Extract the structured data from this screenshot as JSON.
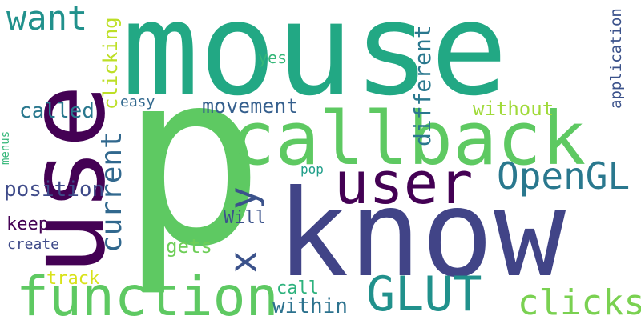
{
  "words": [
    {
      "id": "p",
      "text": "p",
      "color": "#5ec962"
    },
    {
      "id": "mouse",
      "text": "mouse",
      "color": "#22a884"
    },
    {
      "id": "know",
      "text": "know",
      "color": "#414487"
    },
    {
      "id": "use",
      "text": "use",
      "color": "#440154"
    },
    {
      "id": "callback",
      "text": "callback",
      "color": "#5ec962"
    },
    {
      "id": "function",
      "text": "function",
      "color": "#5ec962"
    },
    {
      "id": "user",
      "text": "user",
      "color": "#440154"
    },
    {
      "id": "opengl",
      "text": "OpenGL",
      "color": "#2a788e"
    },
    {
      "id": "glut",
      "text": "GLUT",
      "color": "#21918c"
    },
    {
      "id": "x",
      "text": "x",
      "color": "#3b528b"
    },
    {
      "id": "y",
      "text": "y",
      "color": "#3b528b"
    },
    {
      "id": "want",
      "text": "want",
      "color": "#21918c"
    },
    {
      "id": "clicks",
      "text": "clicks",
      "color": "#7ad151"
    },
    {
      "id": "current",
      "text": "current",
      "color": "#31688e"
    },
    {
      "id": "different",
      "text": "different",
      "color": "#2a788e"
    },
    {
      "id": "clicking",
      "text": "clicking",
      "color": "#bddf26"
    },
    {
      "id": "movement",
      "text": "movement",
      "color": "#355f8d"
    },
    {
      "id": "called",
      "text": "called",
      "color": "#2a788e"
    },
    {
      "id": "position",
      "text": "position",
      "color": "#3e4a89"
    },
    {
      "id": "without",
      "text": "without",
      "color": "#a0da39"
    },
    {
      "id": "within",
      "text": "within",
      "color": "#2c728e"
    },
    {
      "id": "application",
      "text": "application",
      "color": "#3b528b"
    },
    {
      "id": "yes",
      "text": "yes",
      "color": "#35b779"
    },
    {
      "id": "easy",
      "text": "easy",
      "color": "#31688e"
    },
    {
      "id": "keep",
      "text": "keep",
      "color": "#440154"
    },
    {
      "id": "will",
      "text": "Will",
      "color": "#3b528b"
    },
    {
      "id": "gets",
      "text": "gets",
      "color": "#6ece58"
    },
    {
      "id": "create",
      "text": "create",
      "color": "#3e4a89"
    },
    {
      "id": "track",
      "text": "track",
      "color": "#d8e219"
    },
    {
      "id": "call",
      "text": "call",
      "color": "#2db27d"
    },
    {
      "id": "pop",
      "text": "pop",
      "color": "#1f9e89"
    },
    {
      "id": "menus",
      "text": "menus",
      "color": "#35b779"
    }
  ]
}
